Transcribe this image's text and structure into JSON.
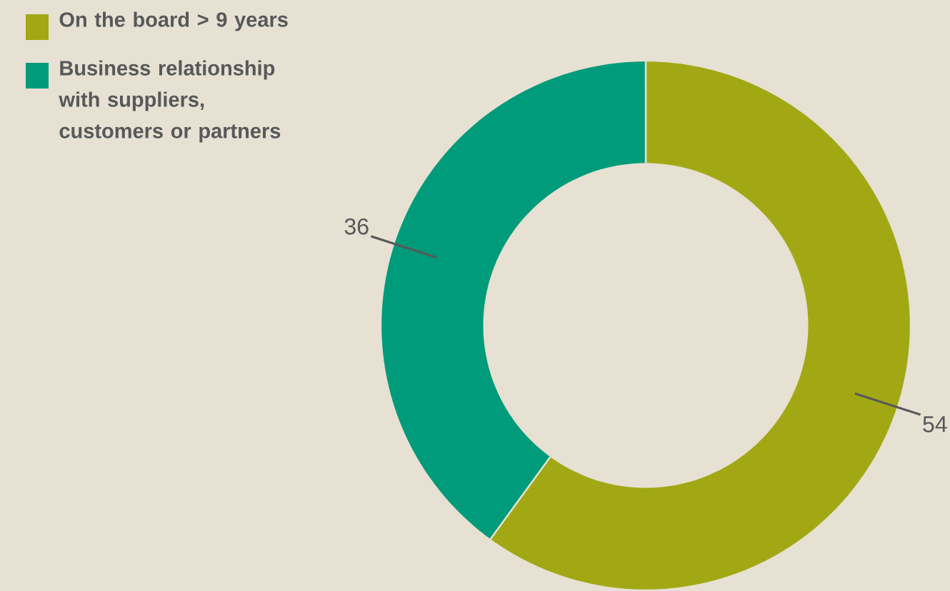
{
  "chart_data": {
    "type": "donut",
    "categories": [
      "On the board > 9 years",
      "Business relationship with suppliers, customers or partners"
    ],
    "values": [
      54,
      36
    ],
    "colors": [
      "#a2a814",
      "#009b7a"
    ],
    "legend": "top left",
    "value_labels": [
      "54",
      "36"
    ]
  }
}
